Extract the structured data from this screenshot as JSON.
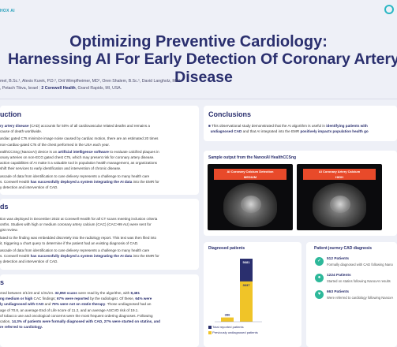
{
  "header": {
    "logo_text": "HOX AI",
    "title_line1": "Optimizing Preventive Cardiology:",
    "title_line2": "Harnessing AI For Early Detection Of Coronary Artery Disease",
    "authors_line1": "mel, B.Sc.¹, Alexis Kurek, P.D.², Orit Wimpfheimer, MD¹, Oren Shalem, B.Sc.¹, David Langholz, MD²",
    "authors_line2_a": ", Petach Tikva, Israel",
    "authors_line2_b": "2 Corewell Health",
    "authors_line2_c": ", Grand Rapids, MI, USA."
  },
  "introduction": {
    "title": "uction",
    "p1_bold": "ry artery disease",
    "p1_rest": " (CAD) accounts for 50% of all cardiovascular related deaths and remains a",
    "p1_l2": "cause of death worldwide.",
    "p2_l1": "ardiac gated CTs minimize image noise caused by cardiac motion, there are an estimated 20 times",
    "p2_l2": "non-cardiac-gated CTs of the chest performed in the USA each year.",
    "p3_pre": "ealthCCSng (NanoxAI) device is an ",
    "p3_bold": "artificial intelligence software",
    "p3_rest": " to evaluate calcified plaques in",
    "p3_l2": "onary arteries on non-ECG gated chest CTs, which may present risk for coronary artery disease.",
    "p3_l3": "action capabilities of AI make it a valuable tool in population health management, as organizations",
    "p3_l4": "shift their services to early identification and intervention of chronic disease.",
    "p4_l1": "ascade of data from identification to care delivery represents a challenge to many health care",
    "p4_l2_pre": "s. Corewell Health ",
    "p4_l2_bold": "has successfully deployed a system integrating the AI data",
    "p4_l2_rest": " into the EMR for",
    "p4_l3": "y detection and intervention of CAD."
  },
  "methods": {
    "title": "ds",
    "l1": "tion was deployed in December 2022 at Corewell Health for all CT scans meeting inclusion criteria",
    "l2": "onths. Studies with high or medium coronary artery calcium (CAC) (CAC>99 AU) were sent for",
    "l3": "gist review.",
    "l4": "lated to the finding was embedded discretely into the radiology report. This text was then filed into",
    "l5": "it, triggering a chart query to determine if the patient had an existing diagnosis of CAD.",
    "l6": "ascade of data from identification to care delivery represents a challenge to many health care",
    "l7_pre": "s. Corewell Health ",
    "l7_bold": "has successfully deployed a system integrating the AI data",
    "l7_rest": " into the EMR for",
    "l8": "y detection and intervention of CAD."
  },
  "results": {
    "title": "s",
    "l1_pre": "cted between 2/1/23 and 1/31/24. ",
    "l1_bold": "32,850 scans",
    "l1_rest": " were read by the algorithm, with ",
    "l1_bold2": "8,481",
    "l2_bold": "ng medium or high",
    "l2_mid": " CAC findings; ",
    "l2_bold2": "67% were reported",
    "l2_mid2": " by the radiologist. Of these, ",
    "l2_bold3": "64% were",
    "l3_bold": "ly undiagnosed with CAD",
    "l3_mid": " and ",
    "l3_bold2": "79% were not on statin therapy",
    "l3_rest": ". Those undiagnosed had an",
    "l4": "age of 70.8, an average End of Life score of 11.2, and an average ASCVD risk of 19.1.",
    "l5": "of tobacco use and oncological concerns were the most frequent ordering diagnoses. Following",
    "l6_pre": "cation, ",
    "l6_bold": "14.3% of patients were formally diagnosed with CAD, 27% were started on statins, and",
    "l7_bold": "re referred to cardiology."
  },
  "conclusions": {
    "title": "Conclusions",
    "l1_pre": "This observational study demonstrated that the AI algorithm is useful in ",
    "l1_bold": "identifying patients with",
    "l2_bold": "undiagnosed CAD",
    "l2_mid": " and that AI integrated into the EMR ",
    "l2_bold2": "positively impacts population health go"
  },
  "sample": {
    "title": "Sample output from the NanoxAI  HealthCCSng",
    "left_label_l1": "AI Coronary Calcium Detection",
    "left_label_l2": "MEDIUM",
    "right_label_l1": "AI Coronary Artery Calcium",
    "right_label_l2": "HIGH"
  },
  "diagnosed": {
    "title": "Diagnosed patients",
    "legend_total": "Total reported patients",
    "legend_prev": "Previously undiagnosed patients",
    "colors": {
      "total": "#2a2f6e",
      "prev": "#f0c428"
    }
  },
  "chart_data": {
    "type": "bar",
    "categories": [
      "",
      ""
    ],
    "series": [
      {
        "name": "Total reported patients",
        "values": [
          0,
          5681
        ]
      },
      {
        "name": "Previously undiagnosed patients",
        "values": [
          386,
          3637
        ]
      }
    ],
    "data_labels": [
      "386",
      "5681",
      "3637"
    ],
    "title": "Diagnosed patients",
    "xlabel": "",
    "ylabel": "",
    "ylim": [
      0,
      5681
    ]
  },
  "journey": {
    "title": "Patient journey CAD diagnosis",
    "items": [
      {
        "title": "512 Patients",
        "sub": "Formally diagnosed with CAD following Nano"
      },
      {
        "title": "1224 Patients",
        "sub": "Started on statins following NanoxAI results"
      },
      {
        "title": "663 Patients",
        "sub": "Were referred to cardiology following NanoxA"
      }
    ]
  }
}
